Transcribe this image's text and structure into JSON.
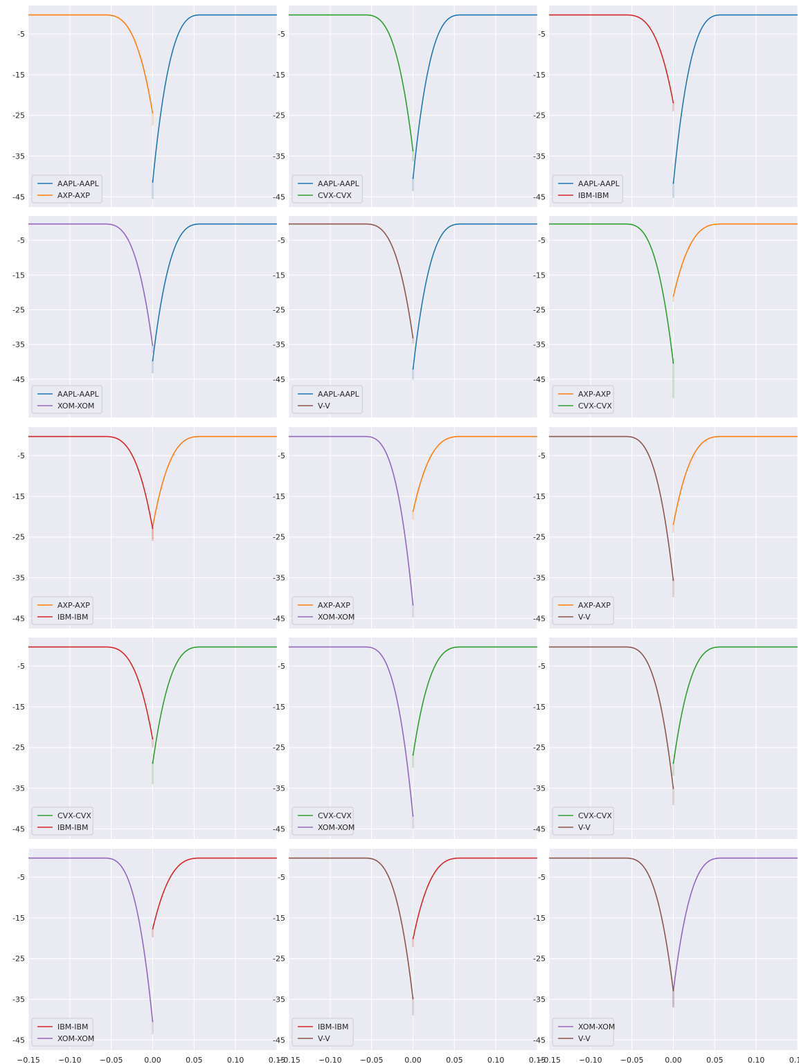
{
  "colors": {
    "AAPL-AAPL": "#1f77b4",
    "AXP-AXP": "#ff7f0e",
    "CVX-CVX": "#2ca02c",
    "IBM-IBM": "#d62728",
    "XOM-XOM": "#9467bd",
    "V-V": "#8c564b"
  },
  "chart_data": [
    {
      "type": "line",
      "grid": true,
      "legend": "lower-left",
      "xlim": [
        -0.15,
        0.15
      ],
      "ylim": [
        -47.5,
        2.0
      ],
      "series": [
        {
          "name": "AAPL-AAPL",
          "side": "right",
          "baseline": -0.3,
          "minimum": -41.5,
          "band": 4.0
        },
        {
          "name": "AXP-AXP",
          "side": "left",
          "baseline": -0.3,
          "minimum": -24.5,
          "band": 3.0
        }
      ]
    },
    {
      "type": "line",
      "grid": true,
      "legend": "lower-left",
      "xlim": [
        -0.15,
        0.15
      ],
      "ylim": [
        -47.5,
        2.0
      ],
      "series": [
        {
          "name": "AAPL-AAPL",
          "side": "right",
          "baseline": -0.3,
          "minimum": -40.6,
          "band": 3.0
        },
        {
          "name": "CVX-CVX",
          "side": "left",
          "baseline": -0.3,
          "minimum": -33.8,
          "band": 2.5
        }
      ]
    },
    {
      "type": "line",
      "grid": true,
      "legend": "lower-left",
      "xlim": [
        -0.15,
        0.15
      ],
      "ylim": [
        -47.5,
        2.0
      ],
      "series": [
        {
          "name": "AAPL-AAPL",
          "side": "right",
          "baseline": -0.3,
          "minimum": -41.8,
          "band": 3.5
        },
        {
          "name": "IBM-IBM",
          "side": "left",
          "baseline": -0.3,
          "minimum": -22.0,
          "band": 2.0
        }
      ]
    },
    {
      "type": "line",
      "grid": true,
      "legend": "lower-left",
      "xlim": [
        -0.15,
        0.15
      ],
      "ylim": [
        -56.0,
        2.0
      ],
      "series": [
        {
          "name": "AAPL-AAPL",
          "side": "right",
          "baseline": -0.3,
          "minimum": -39.8,
          "band": 3.5
        },
        {
          "name": "XOM-XOM",
          "side": "left",
          "baseline": -0.3,
          "minimum": -35.4,
          "band": 2.0
        }
      ]
    },
    {
      "type": "line",
      "grid": true,
      "legend": "lower-left",
      "xlim": [
        -0.15,
        0.15
      ],
      "ylim": [
        -56.0,
        2.0
      ],
      "series": [
        {
          "name": "AAPL-AAPL",
          "side": "right",
          "baseline": -0.3,
          "minimum": -42.2,
          "band": 3.0
        },
        {
          "name": "V-V",
          "side": "left",
          "baseline": -0.3,
          "minimum": -33.2,
          "band": 1.5
        }
      ]
    },
    {
      "type": "line",
      "grid": true,
      "legend": "lower-left",
      "xlim": [
        -0.15,
        0.15
      ],
      "ylim": [
        -56.0,
        2.0
      ],
      "series": [
        {
          "name": "AXP-AXP",
          "side": "right",
          "baseline": -0.3,
          "minimum": -21.2,
          "band": 1.5
        },
        {
          "name": "CVX-CVX",
          "side": "left",
          "baseline": -0.3,
          "minimum": -40.5,
          "band": 10.0
        }
      ]
    },
    {
      "type": "line",
      "grid": true,
      "legend": "lower-left",
      "xlim": [
        -0.15,
        0.15
      ],
      "ylim": [
        -47.5,
        2.0
      ],
      "series": [
        {
          "name": "AXP-AXP",
          "side": "right",
          "baseline": -0.3,
          "minimum": -22.5,
          "band": 3.0
        },
        {
          "name": "IBM-IBM",
          "side": "left",
          "baseline": -0.3,
          "minimum": -23.0,
          "band": 3.0
        }
      ]
    },
    {
      "type": "line",
      "grid": true,
      "legend": "lower-left",
      "xlim": [
        -0.15,
        0.15
      ],
      "ylim": [
        -47.5,
        2.0
      ],
      "series": [
        {
          "name": "AXP-AXP",
          "side": "right",
          "baseline": -0.3,
          "minimum": -18.8,
          "band": 2.0
        },
        {
          "name": "XOM-XOM",
          "side": "left",
          "baseline": -0.3,
          "minimum": -41.8,
          "band": 3.0
        }
      ]
    },
    {
      "type": "line",
      "grid": true,
      "legend": "lower-left",
      "xlim": [
        -0.15,
        0.15
      ],
      "ylim": [
        -47.5,
        2.0
      ],
      "series": [
        {
          "name": "AXP-AXP",
          "side": "right",
          "baseline": -0.3,
          "minimum": -22.0,
          "band": 2.0
        },
        {
          "name": "V-V",
          "side": "left",
          "baseline": -0.3,
          "minimum": -35.8,
          "band": 4.0
        }
      ]
    },
    {
      "type": "line",
      "grid": true,
      "legend": "lower-left",
      "xlim": [
        -0.15,
        0.15
      ],
      "ylim": [
        -47.5,
        2.0
      ],
      "series": [
        {
          "name": "CVX-CVX",
          "side": "right",
          "baseline": -0.3,
          "minimum": -29.0,
          "band": 5.0
        },
        {
          "name": "IBM-IBM",
          "side": "left",
          "baseline": -0.3,
          "minimum": -23.0,
          "band": 2.0
        }
      ]
    },
    {
      "type": "line",
      "grid": true,
      "legend": "lower-left",
      "xlim": [
        -0.15,
        0.15
      ],
      "ylim": [
        -47.5,
        2.0
      ],
      "series": [
        {
          "name": "CVX-CVX",
          "side": "right",
          "baseline": -0.3,
          "minimum": -27.0,
          "band": 3.0
        },
        {
          "name": "XOM-XOM",
          "side": "left",
          "baseline": -0.3,
          "minimum": -42.0,
          "band": 3.0
        }
      ]
    },
    {
      "type": "line",
      "grid": true,
      "legend": "lower-left",
      "xlim": [
        -0.15,
        0.15
      ],
      "ylim": [
        -47.5,
        2.0
      ],
      "series": [
        {
          "name": "CVX-CVX",
          "side": "right",
          "baseline": -0.3,
          "minimum": -29.0,
          "band": 3.0
        },
        {
          "name": "V-V",
          "side": "left",
          "baseline": -0.3,
          "minimum": -35.2,
          "band": 4.0
        }
      ]
    },
    {
      "type": "line",
      "grid": true,
      "legend": "lower-left",
      "xlim": [
        -0.15,
        0.15
      ],
      "ylim": [
        -47.5,
        2.0
      ],
      "series": [
        {
          "name": "IBM-IBM",
          "side": "right",
          "baseline": -0.3,
          "minimum": -17.8,
          "band": 2.0
        },
        {
          "name": "XOM-XOM",
          "side": "left",
          "baseline": -0.3,
          "minimum": -40.6,
          "band": 3.0
        }
      ]
    },
    {
      "type": "line",
      "grid": true,
      "legend": "lower-left",
      "xlim": [
        -0.15,
        0.15
      ],
      "ylim": [
        -47.5,
        2.0
      ],
      "series": [
        {
          "name": "IBM-IBM",
          "side": "right",
          "baseline": -0.3,
          "minimum": -20.2,
          "band": 2.0
        },
        {
          "name": "V-V",
          "side": "left",
          "baseline": -0.3,
          "minimum": -35.0,
          "band": 4.0
        }
      ]
    },
    {
      "type": "line",
      "grid": true,
      "legend": "lower-left",
      "xlim": [
        -0.15,
        0.15
      ],
      "ylim": [
        -47.5,
        2.0
      ],
      "series": [
        {
          "name": "XOM-XOM",
          "side": "right",
          "baseline": -0.3,
          "minimum": -33.0,
          "band": 4.0
        },
        {
          "name": "V-V",
          "side": "left",
          "baseline": -0.3,
          "minimum": -33.0,
          "band": 4.0
        }
      ]
    }
  ],
  "y_tick_values": [
    -5,
    -15,
    -25,
    -35,
    -45
  ],
  "y_tick_labels": [
    "-5",
    "-15",
    "-25",
    "-35",
    "-45"
  ],
  "x_tick_values": [
    -0.15,
    -0.1,
    -0.05,
    0.0,
    0.05,
    0.1,
    0.15
  ],
  "x_tick_labels": [
    "−0.15",
    "−0.10",
    "−0.05",
    "0.00",
    "0.05",
    "0.10",
    "0.15"
  ]
}
